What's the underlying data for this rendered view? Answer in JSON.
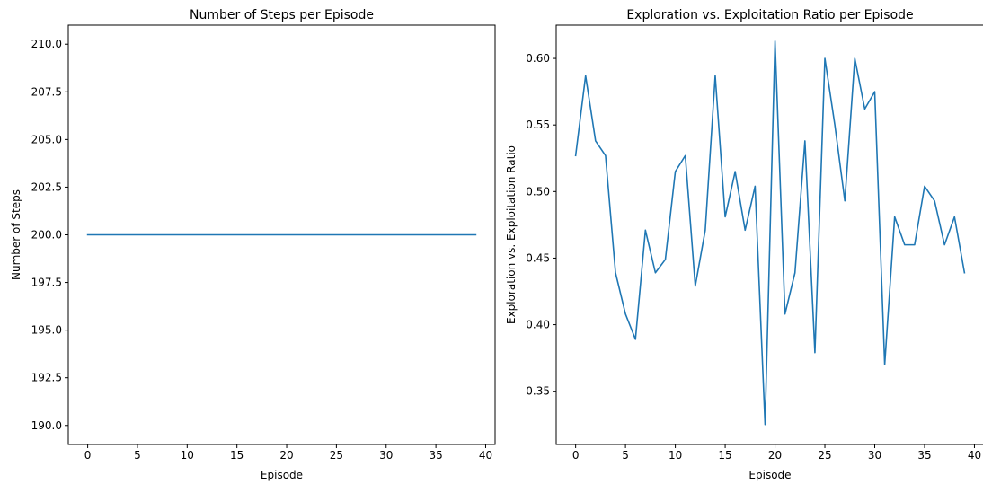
{
  "chart_data": [
    {
      "type": "line",
      "title": "Number of Steps per Episode",
      "xlabel": "Episode",
      "ylabel": "Number of Steps",
      "xlim": [
        -1.95,
        40.95
      ],
      "ylim": [
        189,
        211
      ],
      "xticks": [
        0,
        5,
        10,
        15,
        20,
        25,
        30,
        35,
        40
      ],
      "xtick_labels": [
        "0",
        "5",
        "10",
        "15",
        "20",
        "25",
        "30",
        "35",
        "40"
      ],
      "yticks": [
        190,
        192.5,
        195,
        197.5,
        200,
        202.5,
        205,
        207.5,
        210
      ],
      "ytick_labels": [
        "190.0",
        "192.5",
        "195.0",
        "197.5",
        "200.0",
        "202.5",
        "205.0",
        "207.5",
        "210.0"
      ],
      "grid": false,
      "series": [
        {
          "color": "#1f77b4",
          "x": [
            0,
            1,
            2,
            3,
            4,
            5,
            6,
            7,
            8,
            9,
            10,
            11,
            12,
            13,
            14,
            15,
            16,
            17,
            18,
            19,
            20,
            21,
            22,
            23,
            24,
            25,
            26,
            27,
            28,
            29,
            30,
            31,
            32,
            33,
            34,
            35,
            36,
            37,
            38,
            39
          ],
          "y": [
            200,
            200,
            200,
            200,
            200,
            200,
            200,
            200,
            200,
            200,
            200,
            200,
            200,
            200,
            200,
            200,
            200,
            200,
            200,
            200,
            200,
            200,
            200,
            200,
            200,
            200,
            200,
            200,
            200,
            200,
            200,
            200,
            200,
            200,
            200,
            200,
            200,
            200,
            200,
            200
          ]
        }
      ]
    },
    {
      "type": "line",
      "title": "Exploration vs. Exploitation Ratio per Episode",
      "xlabel": "Episode",
      "ylabel": "Exploration vs. Exploitation Ratio",
      "xlim": [
        -1.95,
        40.95
      ],
      "ylim": [
        0.31,
        0.625
      ],
      "xticks": [
        0,
        5,
        10,
        15,
        20,
        25,
        30,
        35,
        40
      ],
      "xtick_labels": [
        "0",
        "5",
        "10",
        "15",
        "20",
        "25",
        "30",
        "35",
        "40"
      ],
      "yticks": [
        0.35,
        0.4,
        0.45,
        0.5,
        0.55,
        0.6
      ],
      "ytick_labels": [
        "0.35",
        "0.40",
        "0.45",
        "0.50",
        "0.55",
        "0.60"
      ],
      "grid": false,
      "series": [
        {
          "color": "#1f77b4",
          "x": [
            0,
            1,
            2,
            3,
            4,
            5,
            6,
            7,
            8,
            9,
            10,
            11,
            12,
            13,
            14,
            15,
            16,
            17,
            18,
            19,
            20,
            21,
            22,
            23,
            24,
            25,
            26,
            27,
            28,
            29,
            30,
            31,
            32,
            33,
            34,
            35,
            36,
            37,
            38,
            39
          ],
          "y": [
            0.527,
            0.587,
            0.538,
            0.527,
            0.439,
            0.408,
            0.389,
            0.471,
            0.439,
            0.449,
            0.515,
            0.527,
            0.429,
            0.471,
            0.587,
            0.481,
            0.515,
            0.471,
            0.504,
            0.325,
            0.613,
            0.408,
            0.439,
            0.538,
            0.379,
            0.6,
            0.55,
            0.493,
            0.6,
            0.562,
            0.575,
            0.37,
            0.481,
            0.46,
            0.46,
            0.504,
            0.493,
            0.46,
            0.481,
            0.439
          ]
        }
      ]
    }
  ]
}
